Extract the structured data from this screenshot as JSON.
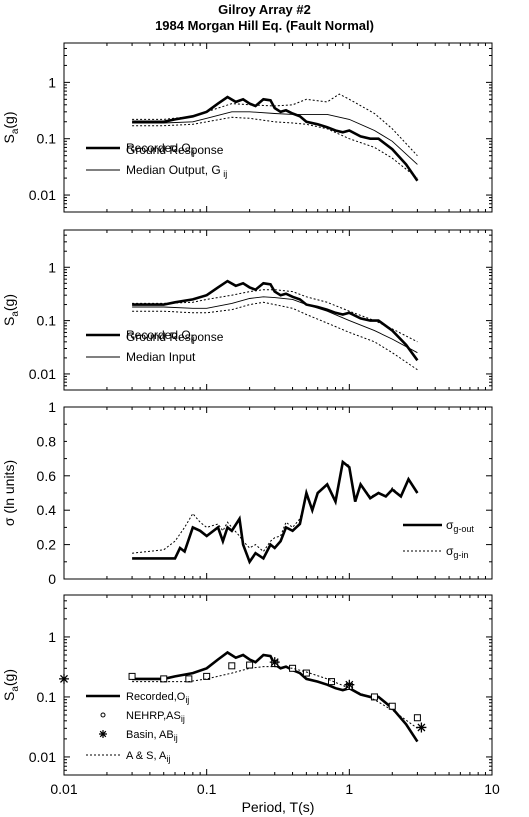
{
  "figure": {
    "title_line1": "Gilroy Array #2",
    "title_line2": "1984 Morgan Hill Eq. (Fault Normal)",
    "xlabel": "Period, T(s)",
    "x_ticks": [
      {
        "v": 0.01,
        "label": "0.01"
      },
      {
        "v": 0.1,
        "label": "0.1"
      },
      {
        "v": 1,
        "label": "1"
      },
      {
        "v": 10,
        "label": "10"
      }
    ]
  },
  "chart_data": [
    {
      "type": "line",
      "ylabel": "Sa(g)",
      "ylabel_main": "S",
      "ylabel_sub": "a",
      "ylabel_tail": "(g)",
      "x_scale": "log",
      "y_scale": "log",
      "xlim": [
        0.01,
        10
      ],
      "ylim": [
        0.005,
        5
      ],
      "y_ticks": [
        {
          "v": 1,
          "label": "1"
        },
        {
          "v": 0.1,
          "label": "0.1"
        },
        {
          "v": 0.01,
          "label": "0.01"
        }
      ],
      "legend": [
        {
          "line": "thick",
          "label": "Recorded,O",
          "sub": "ij"
        },
        {
          "line": "thin",
          "label": "Ground Response",
          "label2": "Median Output, G",
          "sub": "ij"
        }
      ],
      "series": [
        {
          "name": "Recorded, Oij",
          "style": "thick",
          "x": [
            0.03,
            0.05,
            0.06,
            0.08,
            0.1,
            0.12,
            0.14,
            0.16,
            0.18,
            0.2,
            0.22,
            0.25,
            0.28,
            0.3,
            0.33,
            0.36,
            0.4,
            0.45,
            0.5,
            0.6,
            0.7,
            0.8,
            0.9,
            1.0,
            1.2,
            1.4,
            1.6,
            2.0,
            2.5,
            3.0
          ],
          "y": [
            0.2,
            0.2,
            0.22,
            0.25,
            0.3,
            0.42,
            0.55,
            0.45,
            0.5,
            0.42,
            0.38,
            0.5,
            0.48,
            0.35,
            0.3,
            0.32,
            0.28,
            0.25,
            0.2,
            0.18,
            0.16,
            0.14,
            0.13,
            0.14,
            0.11,
            0.1,
            0.1,
            0.065,
            0.035,
            0.018
          ]
        },
        {
          "name": "Median Output, Gij",
          "style": "thin",
          "x": [
            0.03,
            0.05,
            0.08,
            0.1,
            0.15,
            0.2,
            0.3,
            0.4,
            0.5,
            0.7,
            1.0,
            1.5,
            2.0,
            3.0
          ],
          "y": [
            0.19,
            0.19,
            0.2,
            0.23,
            0.3,
            0.3,
            0.28,
            0.27,
            0.27,
            0.27,
            0.22,
            0.14,
            0.09,
            0.035
          ]
        },
        {
          "name": "",
          "style": "dotted",
          "x": [
            0.03,
            0.05,
            0.08,
            0.1,
            0.15,
            0.2,
            0.3,
            0.4,
            0.5,
            0.7,
            0.85,
            1.0,
            1.5,
            2.0,
            3.0
          ],
          "y": [
            0.22,
            0.22,
            0.25,
            0.3,
            0.42,
            0.4,
            0.38,
            0.4,
            0.5,
            0.45,
            0.62,
            0.5,
            0.28,
            0.15,
            0.05
          ]
        },
        {
          "name": "",
          "style": "dotted",
          "x": [
            0.03,
            0.05,
            0.08,
            0.1,
            0.15,
            0.2,
            0.3,
            0.4,
            0.5,
            0.7,
            1.0,
            1.5,
            2.0,
            3.0
          ],
          "y": [
            0.17,
            0.17,
            0.18,
            0.2,
            0.24,
            0.23,
            0.2,
            0.19,
            0.18,
            0.15,
            0.1,
            0.07,
            0.045,
            0.02
          ]
        }
      ]
    },
    {
      "type": "line",
      "ylabel": "Sa(g)",
      "ylabel_main": "S",
      "ylabel_sub": "a",
      "ylabel_tail": "(g)",
      "x_scale": "log",
      "y_scale": "log",
      "xlim": [
        0.01,
        10
      ],
      "ylim": [
        0.005,
        5
      ],
      "y_ticks": [
        {
          "v": 1,
          "label": "1"
        },
        {
          "v": 0.1,
          "label": "0.1"
        },
        {
          "v": 0.01,
          "label": "0.01"
        }
      ],
      "legend": [
        {
          "line": "thick",
          "label": "Recorded,O",
          "sub": "ij"
        },
        {
          "line": "thin",
          "label": "Ground Response",
          "label2": "Median Input",
          "sub": ""
        }
      ],
      "series": [
        {
          "name": "Recorded, Oij",
          "style": "thick",
          "x": [
            0.03,
            0.05,
            0.06,
            0.08,
            0.1,
            0.12,
            0.14,
            0.16,
            0.18,
            0.2,
            0.22,
            0.25,
            0.28,
            0.3,
            0.33,
            0.36,
            0.4,
            0.45,
            0.5,
            0.6,
            0.7,
            0.8,
            0.9,
            1.0,
            1.2,
            1.4,
            1.6,
            2.0,
            2.5,
            3.0
          ],
          "y": [
            0.2,
            0.2,
            0.22,
            0.25,
            0.3,
            0.42,
            0.55,
            0.45,
            0.5,
            0.42,
            0.38,
            0.5,
            0.48,
            0.35,
            0.3,
            0.32,
            0.28,
            0.25,
            0.2,
            0.18,
            0.16,
            0.14,
            0.13,
            0.14,
            0.11,
            0.1,
            0.1,
            0.065,
            0.035,
            0.018
          ]
        },
        {
          "name": "Median Input",
          "style": "thin",
          "x": [
            0.03,
            0.05,
            0.08,
            0.1,
            0.15,
            0.2,
            0.25,
            0.3,
            0.4,
            0.5,
            0.7,
            1.0,
            1.5,
            2.0,
            3.0
          ],
          "y": [
            0.18,
            0.18,
            0.17,
            0.17,
            0.21,
            0.26,
            0.28,
            0.27,
            0.25,
            0.2,
            0.15,
            0.1,
            0.065,
            0.045,
            0.025
          ]
        },
        {
          "name": "",
          "style": "dotted",
          "x": [
            0.03,
            0.05,
            0.08,
            0.1,
            0.15,
            0.2,
            0.25,
            0.3,
            0.4,
            0.5,
            0.7,
            1.0,
            1.5,
            2.0,
            3.0
          ],
          "y": [
            0.21,
            0.21,
            0.22,
            0.25,
            0.3,
            0.35,
            0.38,
            0.38,
            0.35,
            0.28,
            0.22,
            0.15,
            0.1,
            0.07,
            0.04
          ]
        },
        {
          "name": "",
          "style": "dotted",
          "x": [
            0.03,
            0.05,
            0.08,
            0.1,
            0.15,
            0.2,
            0.25,
            0.3,
            0.4,
            0.5,
            0.7,
            1.0,
            1.5,
            2.0,
            3.0
          ],
          "y": [
            0.15,
            0.15,
            0.14,
            0.14,
            0.16,
            0.2,
            0.22,
            0.2,
            0.17,
            0.13,
            0.09,
            0.06,
            0.04,
            0.025,
            0.012
          ]
        }
      ]
    },
    {
      "type": "line",
      "ylabel": "σ (ln units)",
      "x_scale": "log",
      "y_scale": "linear",
      "xlim": [
        0.01,
        10
      ],
      "ylim": [
        0,
        1
      ],
      "y_ticks": [
        {
          "v": 0,
          "label": "0"
        },
        {
          "v": 0.2,
          "label": "0.2"
        },
        {
          "v": 0.4,
          "label": "0.4"
        },
        {
          "v": 0.6,
          "label": "0.6"
        },
        {
          "v": 0.8,
          "label": "0.8"
        },
        {
          "v": 1,
          "label": "1"
        }
      ],
      "legend": [
        {
          "line": "thick",
          "label": "σ",
          "sub": "g-out"
        },
        {
          "line": "dotted",
          "label": "σ",
          "sub": "g-in"
        }
      ],
      "series": [
        {
          "name": "σg-out",
          "style": "thick",
          "x": [
            0.03,
            0.05,
            0.06,
            0.065,
            0.07,
            0.08,
            0.09,
            0.1,
            0.12,
            0.13,
            0.14,
            0.15,
            0.17,
            0.18,
            0.2,
            0.22,
            0.25,
            0.28,
            0.3,
            0.33,
            0.36,
            0.4,
            0.45,
            0.5,
            0.55,
            0.6,
            0.7,
            0.8,
            0.9,
            1.0,
            1.1,
            1.2,
            1.4,
            1.6,
            1.8,
            2.0,
            2.3,
            2.6,
            3.0
          ],
          "y": [
            0.12,
            0.12,
            0.12,
            0.18,
            0.16,
            0.3,
            0.28,
            0.25,
            0.3,
            0.22,
            0.3,
            0.28,
            0.35,
            0.2,
            0.1,
            0.15,
            0.12,
            0.2,
            0.18,
            0.22,
            0.3,
            0.28,
            0.32,
            0.5,
            0.4,
            0.5,
            0.55,
            0.45,
            0.68,
            0.65,
            0.45,
            0.55,
            0.47,
            0.5,
            0.48,
            0.52,
            0.48,
            0.58,
            0.5
          ]
        },
        {
          "name": "σg-in",
          "style": "dotted",
          "x": [
            0.03,
            0.05,
            0.06,
            0.07,
            0.08,
            0.09,
            0.1,
            0.12,
            0.13,
            0.14,
            0.15,
            0.17,
            0.18,
            0.2,
            0.22,
            0.25,
            0.28,
            0.3,
            0.33,
            0.36,
            0.4,
            0.45,
            0.5,
            0.55,
            0.6,
            0.7,
            0.8,
            0.9,
            1.0,
            1.1,
            1.2,
            1.4,
            1.6,
            1.8,
            2.0,
            2.3,
            2.6,
            3.0
          ],
          "y": [
            0.15,
            0.17,
            0.22,
            0.3,
            0.38,
            0.33,
            0.3,
            0.32,
            0.28,
            0.33,
            0.3,
            0.25,
            0.22,
            0.18,
            0.2,
            0.16,
            0.22,
            0.24,
            0.25,
            0.33,
            0.3,
            0.35,
            0.48,
            0.4,
            0.5,
            0.55,
            0.45,
            0.68,
            0.66,
            0.47,
            0.55,
            0.48,
            0.5,
            0.48,
            0.53,
            0.48,
            0.58,
            0.5
          ]
        }
      ]
    },
    {
      "type": "line",
      "ylabel": "Sa(g)",
      "ylabel_main": "S",
      "ylabel_sub": "a",
      "ylabel_tail": "(g)",
      "x_scale": "log",
      "y_scale": "log",
      "xlim": [
        0.01,
        10
      ],
      "ylim": [
        0.005,
        5
      ],
      "y_ticks": [
        {
          "v": 1,
          "label": "1"
        },
        {
          "v": 0.1,
          "label": "0.1"
        },
        {
          "v": 0.01,
          "label": "0.01"
        }
      ],
      "legend": [
        {
          "line": "thick",
          "label": "Recorded,O",
          "sub": "ij"
        },
        {
          "line": "square",
          "label": "NEHRP,AS",
          "sub": "ij"
        },
        {
          "line": "star",
          "label": "Basin, AB",
          "sub": "ij"
        },
        {
          "line": "dotted",
          "label": "A & S, A",
          "sub": "ij"
        }
      ],
      "series": [
        {
          "name": "Recorded, Oij",
          "style": "thick",
          "x": [
            0.03,
            0.05,
            0.06,
            0.08,
            0.1,
            0.12,
            0.14,
            0.16,
            0.18,
            0.2,
            0.22,
            0.25,
            0.28,
            0.3,
            0.33,
            0.36,
            0.4,
            0.45,
            0.5,
            0.6,
            0.7,
            0.8,
            0.9,
            1.0,
            1.2,
            1.4,
            1.6,
            2.0,
            2.5,
            3.0
          ],
          "y": [
            0.2,
            0.2,
            0.22,
            0.25,
            0.3,
            0.42,
            0.55,
            0.45,
            0.5,
            0.42,
            0.38,
            0.5,
            0.48,
            0.35,
            0.3,
            0.32,
            0.28,
            0.25,
            0.2,
            0.18,
            0.16,
            0.14,
            0.13,
            0.14,
            0.11,
            0.1,
            0.1,
            0.065,
            0.035,
            0.018
          ]
        },
        {
          "name": "NEHRP, ASij",
          "style": "square",
          "x": [
            0.03,
            0.05,
            0.075,
            0.1,
            0.15,
            0.2,
            0.3,
            0.4,
            0.5,
            0.75,
            1.0,
            1.5,
            2.0,
            3.0
          ],
          "y": [
            0.22,
            0.2,
            0.2,
            0.22,
            0.33,
            0.34,
            0.36,
            0.3,
            0.25,
            0.18,
            0.15,
            0.1,
            0.07,
            0.045
          ]
        },
        {
          "name": "Basin, ABij",
          "style": "star",
          "x": [
            0.01,
            0.3,
            1.0,
            3.2
          ],
          "y": [
            0.2,
            0.38,
            0.16,
            0.031
          ]
        },
        {
          "name": "A & S, Aij",
          "style": "dotted",
          "x": [
            0.03,
            0.05,
            0.075,
            0.1,
            0.15,
            0.2,
            0.25,
            0.3,
            0.4,
            0.5,
            0.7,
            1.0,
            1.5,
            2.0,
            3.0
          ],
          "y": [
            0.18,
            0.18,
            0.18,
            0.2,
            0.25,
            0.3,
            0.32,
            0.32,
            0.3,
            0.26,
            0.2,
            0.14,
            0.09,
            0.06,
            0.03
          ]
        }
      ]
    }
  ]
}
